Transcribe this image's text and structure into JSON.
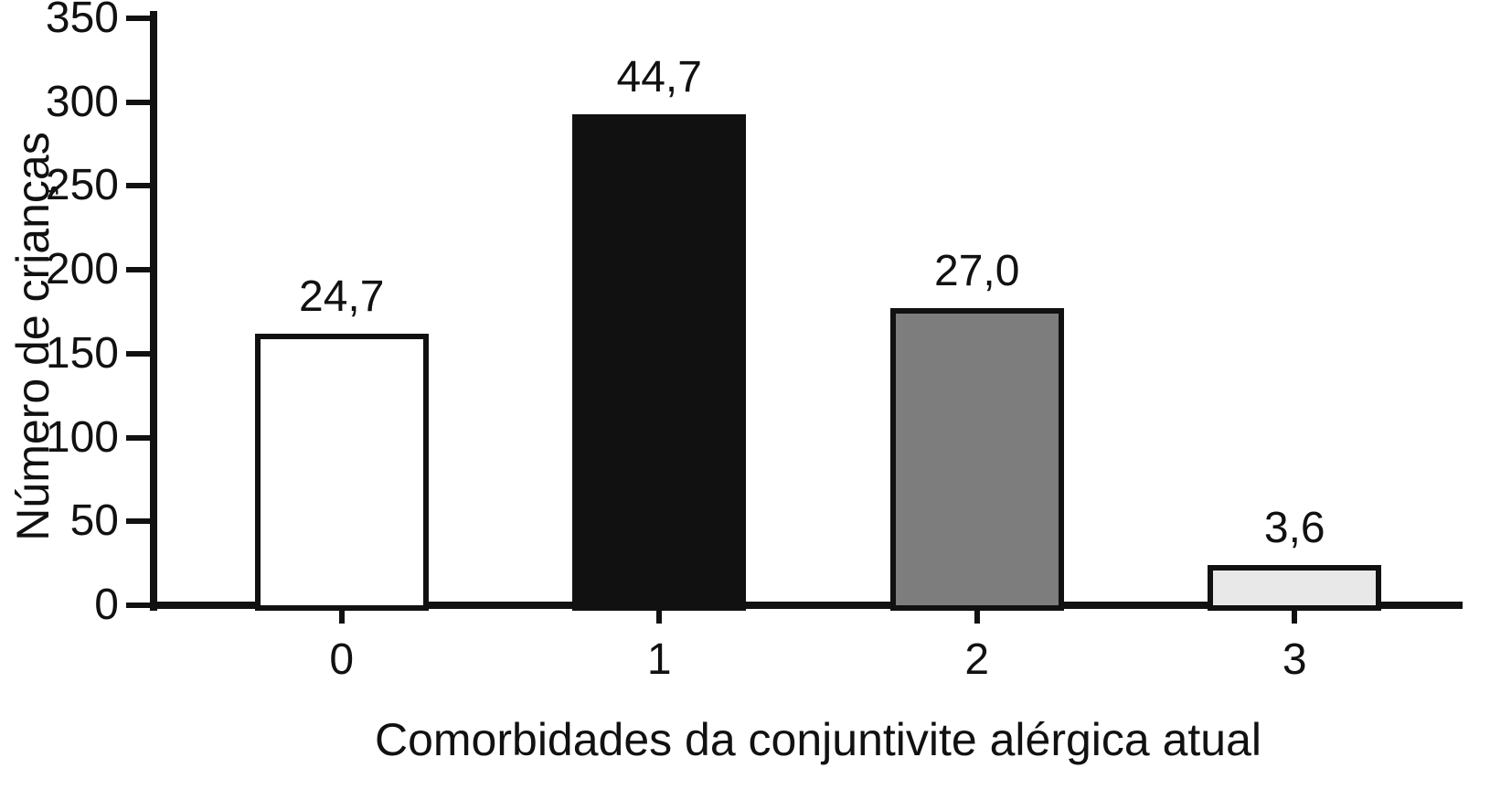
{
  "chart_data": {
    "type": "bar",
    "title": "",
    "xlabel": "Comorbidades da conjuntivite alérgica atual",
    "ylabel": "Número de crianças",
    "categories": [
      "0",
      "1",
      "2",
      "3"
    ],
    "values": [
      162,
      293,
      177,
      24
    ],
    "bar_labels": [
      "24,7",
      "44,7",
      "27,0",
      "3,6"
    ],
    "y_ticks": [
      0,
      50,
      100,
      150,
      200,
      250,
      300,
      350
    ],
    "ylim": [
      0,
      350
    ],
    "bar_colors": [
      "#ffffff",
      "#111111",
      "#7d7d7d",
      "#e8e8e8"
    ],
    "bar_border_color": "#111111",
    "axis_color": "#111111",
    "background_color": "#ffffff",
    "grid": false,
    "legend": "none"
  }
}
